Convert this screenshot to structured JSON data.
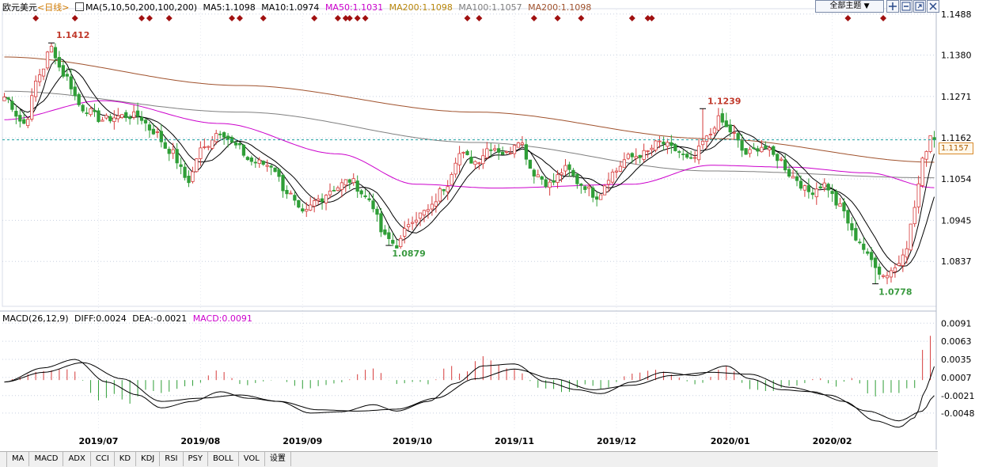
{
  "header": {
    "instrument": "欧元美元",
    "period": "<日线>",
    "ma_params": "MA(5,10,50,200,100,200)",
    "ma_values": [
      {
        "label": "MA5:1.1098",
        "color": "#000000"
      },
      {
        "label": "MA10:1.0974",
        "color": "#000000"
      },
      {
        "label": "MA50:1.1031",
        "color": "#cc00cc"
      },
      {
        "label": "MA200:1.1098",
        "color": "#b8860b"
      },
      {
        "label": "MA100:1.1057",
        "color": "#808080"
      },
      {
        "label": "MA200:1.1098",
        "color": "#a0522d"
      }
    ],
    "theme_select": "全部主题",
    "theme_arrow": "▼"
  },
  "macd_header": {
    "params": "MACD(26,12,9)",
    "diff": "DIFF:0.0024",
    "dea": "DEA:-0.0021",
    "macd": "MACD:0.0091"
  },
  "bottom_tabs": [
    "MA",
    "MACD",
    "ADX",
    "CCI",
    "KD",
    "KDJ",
    "RSI",
    "PSY",
    "BOLL",
    "VOL",
    "设置"
  ],
  "current_price_tag": "1.1157",
  "colors": {
    "up": "#d63b3b",
    "down": "#2f9e37",
    "ma5": "#000000",
    "ma10": "#000000",
    "ma50": "#cc00cc",
    "ma100": "#808080",
    "ma200": "#a0522d",
    "grid": "#c8d0e0",
    "current_line": "#1aa0a0",
    "marker": "#a01010"
  },
  "chart_data": {
    "type": "candlestick",
    "price_axis_ticks": [
      "1.1488",
      "1.1380",
      "1.1271",
      "1.1162",
      "1.1054",
      "1.0945",
      "1.0837"
    ],
    "price_range": [
      1.0725,
      1.15
    ],
    "annotations": [
      {
        "label": "1.1412",
        "value": 1.1412,
        "type": "high"
      },
      {
        "label": "1.0879",
        "value": 1.0879,
        "type": "low"
      },
      {
        "label": "1.1239",
        "value": 1.1239,
        "type": "high"
      },
      {
        "label": "1.0778",
        "value": 1.0778,
        "type": "low"
      }
    ],
    "current_price": 1.1157,
    "x_labels": [
      "2019/07",
      "2019/08",
      "2019/09",
      "2019/10",
      "2019/11",
      "2019/12",
      "2020/01",
      "2020/02"
    ],
    "anchor_closes": [
      [
        0,
        1.127
      ],
      [
        5,
        1.12
      ],
      [
        9,
        1.133
      ],
      [
        12,
        1.14
      ],
      [
        15,
        1.133
      ],
      [
        20,
        1.124
      ],
      [
        25,
        1.121
      ],
      [
        30,
        1.122
      ],
      [
        34,
        1.122
      ],
      [
        38,
        1.118
      ],
      [
        42,
        1.113
      ],
      [
        47,
        1.105
      ],
      [
        50,
        1.113
      ],
      [
        55,
        1.118
      ],
      [
        59,
        1.114
      ],
      [
        63,
        1.11
      ],
      [
        68,
        1.109
      ],
      [
        72,
        1.102
      ],
      [
        76,
        1.096
      ],
      [
        80,
        1.1
      ],
      [
        84,
        1.103
      ],
      [
        88,
        1.105
      ],
      [
        93,
        1.1
      ],
      [
        97,
        1.09
      ],
      [
        100,
        1.088
      ],
      [
        104,
        1.095
      ],
      [
        108,
        1.097
      ],
      [
        112,
        1.103
      ],
      [
        116,
        1.112
      ],
      [
        120,
        1.11
      ],
      [
        124,
        1.114
      ],
      [
        128,
        1.112
      ],
      [
        131,
        1.116
      ],
      [
        135,
        1.107
      ],
      [
        139,
        1.104
      ],
      [
        143,
        1.108
      ],
      [
        147,
        1.104
      ],
      [
        151,
        1.101
      ],
      [
        155,
        1.107
      ],
      [
        159,
        1.111
      ],
      [
        163,
        1.112
      ],
      [
        167,
        1.115
      ],
      [
        171,
        1.113
      ],
      [
        175,
        1.11
      ],
      [
        179,
        1.116
      ],
      [
        182,
        1.121
      ],
      [
        185,
        1.118
      ],
      [
        189,
        1.112
      ],
      [
        193,
        1.114
      ],
      [
        197,
        1.111
      ],
      [
        201,
        1.106
      ],
      [
        205,
        1.102
      ],
      [
        209,
        1.104
      ],
      [
        213,
        1.098
      ],
      [
        217,
        1.09
      ],
      [
        221,
        1.084
      ],
      [
        224,
        1.08
      ],
      [
        227,
        1.082
      ],
      [
        230,
        1.088
      ],
      [
        232,
        1.098
      ],
      [
        234,
        1.11
      ],
      [
        236,
        1.117
      ],
      [
        237,
        1.1157
      ]
    ],
    "ma_series": {
      "ma200": {
        "name": "MA200",
        "points": [
          [
            0,
            1.1375
          ],
          [
            60,
            1.13
          ],
          [
            120,
            1.123
          ],
          [
            180,
            1.116
          ],
          [
            237,
            1.1098
          ]
        ]
      },
      "ma100": {
        "name": "MA100",
        "points": [
          [
            0,
            1.1285
          ],
          [
            60,
            1.123
          ],
          [
            120,
            1.115
          ],
          [
            180,
            1.1075
          ],
          [
            237,
            1.1057
          ]
        ]
      },
      "ma50": {
        "name": "MA50",
        "points": [
          [
            0,
            1.121
          ],
          [
            25,
            1.126
          ],
          [
            55,
            1.12
          ],
          [
            85,
            1.112
          ],
          [
            105,
            1.104
          ],
          [
            125,
            1.103
          ],
          [
            160,
            1.104
          ],
          [
            180,
            1.109
          ],
          [
            200,
            1.1085
          ],
          [
            220,
            1.107
          ],
          [
            237,
            1.1031
          ]
        ]
      }
    },
    "macd": {
      "ticks": [
        "0.0091",
        "0.0063",
        "0.0035",
        "0.0007",
        "-0.0021",
        "-0.0048"
      ],
      "range": [
        -0.008,
        0.0095
      ],
      "diff_anchors": [
        [
          0,
          0.0
        ],
        [
          10,
          0.0022
        ],
        [
          18,
          0.0035
        ],
        [
          26,
          0.0
        ],
        [
          34,
          -0.002
        ],
        [
          40,
          -0.004
        ],
        [
          48,
          -0.003
        ],
        [
          55,
          -0.0015
        ],
        [
          62,
          -0.0025
        ],
        [
          70,
          -0.003
        ],
        [
          78,
          -0.0048
        ],
        [
          86,
          -0.0046
        ],
        [
          94,
          -0.0035
        ],
        [
          100,
          -0.0045
        ],
        [
          108,
          -0.003
        ],
        [
          115,
          -0.0002
        ],
        [
          122,
          0.0025
        ],
        [
          130,
          0.0028
        ],
        [
          138,
          0.0
        ],
        [
          146,
          -0.0012
        ],
        [
          152,
          -0.0018
        ],
        [
          160,
          0.0
        ],
        [
          168,
          0.0015
        ],
        [
          176,
          0.001
        ],
        [
          184,
          0.0025
        ],
        [
          190,
          0.0005
        ],
        [
          198,
          -0.0012
        ],
        [
          206,
          -0.0015
        ],
        [
          214,
          -0.003
        ],
        [
          222,
          -0.006
        ],
        [
          228,
          -0.007
        ],
        [
          232,
          -0.0055
        ],
        [
          235,
          -0.001
        ],
        [
          237,
          0.0024
        ]
      ],
      "dea_anchors": [
        [
          0,
          0.0
        ],
        [
          10,
          0.0015
        ],
        [
          20,
          0.003
        ],
        [
          30,
          0.0005
        ],
        [
          40,
          -0.003
        ],
        [
          50,
          -0.0025
        ],
        [
          60,
          -0.002
        ],
        [
          70,
          -0.003
        ],
        [
          80,
          -0.0043
        ],
        [
          90,
          -0.0045
        ],
        [
          100,
          -0.0042
        ],
        [
          110,
          -0.0025
        ],
        [
          120,
          0.0005
        ],
        [
          130,
          0.002
        ],
        [
          140,
          0.0005
        ],
        [
          150,
          -0.0012
        ],
        [
          160,
          -0.0005
        ],
        [
          170,
          0.001
        ],
        [
          180,
          0.0015
        ],
        [
          190,
          0.0012
        ],
        [
          200,
          -0.0008
        ],
        [
          210,
          -0.002
        ],
        [
          220,
          -0.0045
        ],
        [
          228,
          -0.006
        ],
        [
          234,
          -0.0045
        ],
        [
          237,
          -0.0021
        ]
      ]
    }
  }
}
